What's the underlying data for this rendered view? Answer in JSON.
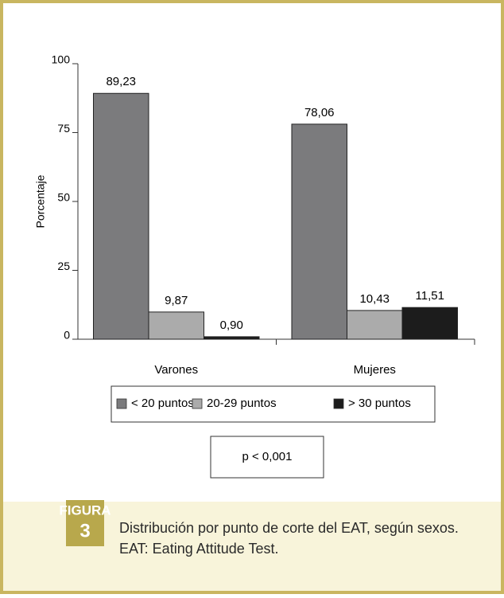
{
  "chart_data": {
    "type": "bar",
    "y_label": "Porcentaje",
    "categories": [
      "Varones",
      "Mujeres"
    ],
    "series": [
      {
        "name": "< 20 puntos",
        "color": "#7b7b7d",
        "values": [
          89.23,
          78.06
        ],
        "value_labels": [
          "89,23",
          "78,06"
        ]
      },
      {
        "name": "20-29 puntos",
        "color": "#ababab",
        "values": [
          9.87,
          10.43
        ],
        "value_labels": [
          "9,87",
          "10,43"
        ]
      },
      {
        "name": "> 30 puntos",
        "color": "#1c1c1c",
        "values": [
          0.9,
          11.51
        ],
        "value_labels": [
          "0,90",
          "11,51"
        ]
      }
    ],
    "ylim": [
      0,
      100
    ],
    "yticks": [
      0,
      25,
      50,
      75,
      100
    ],
    "annotation": "p < 0,001"
  },
  "caption": {
    "label": "FIGURA",
    "number": "3",
    "lines": [
      "Distribución por punto de corte del EAT, según sexos.",
      "EAT: Eating Attitude Test."
    ]
  }
}
